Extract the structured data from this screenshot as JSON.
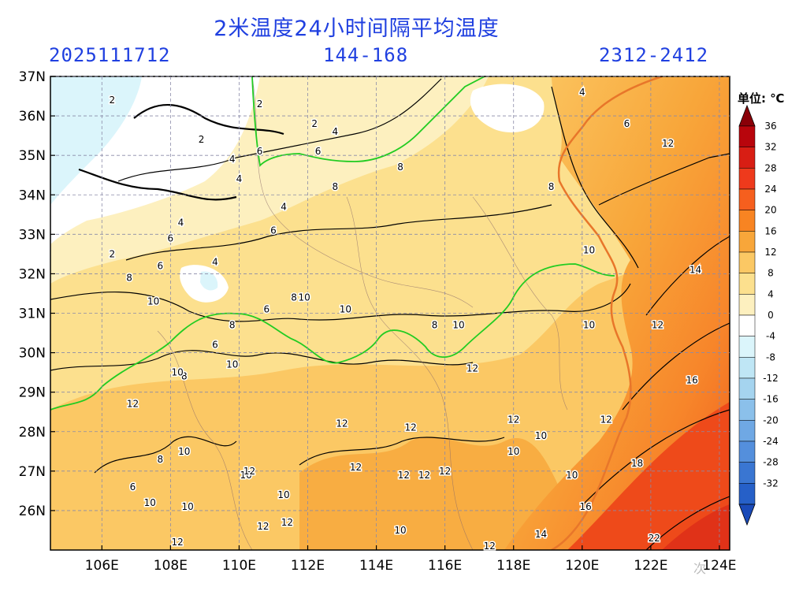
{
  "header": {
    "title": "2米温度24小时间隔平均温度",
    "init_time": "2025111712",
    "forecast_hours": "144-168",
    "valid_period": "2312-2412"
  },
  "map": {
    "lat_labels": [
      "37N",
      "36N",
      "35N",
      "34N",
      "33N",
      "32N",
      "31N",
      "30N",
      "29N",
      "28N",
      "27N",
      "26N"
    ],
    "lon_labels": [
      "106E",
      "108E",
      "110E",
      "112E",
      "114E",
      "116E",
      "118E",
      "120E",
      "122E",
      "124E"
    ],
    "contour_labels": [
      {
        "text": "2",
        "lon": 106.3,
        "lat": 36.4
      },
      {
        "text": "2",
        "lon": 108.9,
        "lat": 35.4
      },
      {
        "text": "2",
        "lon": 110.6,
        "lat": 36.3
      },
      {
        "text": "2",
        "lon": 112.2,
        "lat": 35.8
      },
      {
        "text": "2",
        "lon": 106.3,
        "lat": 32.5
      },
      {
        "text": "4",
        "lon": 109.8,
        "lat": 34.9
      },
      {
        "text": "4",
        "lon": 112.8,
        "lat": 35.6
      },
      {
        "text": "4",
        "lon": 110.0,
        "lat": 34.4
      },
      {
        "text": "4",
        "lon": 111.3,
        "lat": 33.7
      },
      {
        "text": "4",
        "lon": 109.3,
        "lat": 32.3
      },
      {
        "text": "4",
        "lon": 108.3,
        "lat": 33.3
      },
      {
        "text": "4",
        "lon": 120.0,
        "lat": 36.6
      },
      {
        "text": "6",
        "lon": 110.6,
        "lat": 35.1
      },
      {
        "text": "6",
        "lon": 112.3,
        "lat": 35.1
      },
      {
        "text": "6",
        "lon": 108.0,
        "lat": 32.9
      },
      {
        "text": "6",
        "lon": 107.7,
        "lat": 32.2
      },
      {
        "text": "6",
        "lon": 111.0,
        "lat": 33.1
      },
      {
        "text": "6",
        "lon": 110.8,
        "lat": 31.1
      },
      {
        "text": "6",
        "lon": 109.3,
        "lat": 30.2
      },
      {
        "text": "6",
        "lon": 121.3,
        "lat": 35.8
      },
      {
        "text": "6",
        "lon": 106.9,
        "lat": 26.6
      },
      {
        "text": "8",
        "lon": 106.8,
        "lat": 31.9
      },
      {
        "text": "8",
        "lon": 112.8,
        "lat": 34.2
      },
      {
        "text": "8",
        "lon": 114.7,
        "lat": 34.7
      },
      {
        "text": "8",
        "lon": 119.1,
        "lat": 34.2
      },
      {
        "text": "8",
        "lon": 111.6,
        "lat": 31.4
      },
      {
        "text": "8",
        "lon": 109.8,
        "lat": 30.7
      },
      {
        "text": "8",
        "lon": 115.7,
        "lat": 30.7
      },
      {
        "text": "8",
        "lon": 108.4,
        "lat": 29.4
      },
      {
        "text": "8",
        "lon": 107.7,
        "lat": 27.3
      },
      {
        "text": "10",
        "lon": 107.5,
        "lat": 31.3
      },
      {
        "text": "10",
        "lon": 111.9,
        "lat": 31.4
      },
      {
        "text": "10",
        "lon": 113.1,
        "lat": 31.1
      },
      {
        "text": "10",
        "lon": 116.4,
        "lat": 30.7
      },
      {
        "text": "10",
        "lon": 120.2,
        "lat": 32.6
      },
      {
        "text": "10",
        "lon": 120.2,
        "lat": 30.7
      },
      {
        "text": "10",
        "lon": 109.8,
        "lat": 29.7
      },
      {
        "text": "10",
        "lon": 108.2,
        "lat": 29.5
      },
      {
        "text": "10",
        "lon": 108.4,
        "lat": 27.5
      },
      {
        "text": "10",
        "lon": 110.2,
        "lat": 26.9
      },
      {
        "text": "10",
        "lon": 108.5,
        "lat": 26.1
      },
      {
        "text": "10",
        "lon": 107.4,
        "lat": 26.2
      },
      {
        "text": "10",
        "lon": 111.3,
        "lat": 26.4
      },
      {
        "text": "10",
        "lon": 118.0,
        "lat": 27.5
      },
      {
        "text": "10",
        "lon": 118.8,
        "lat": 27.9
      },
      {
        "text": "10",
        "lon": 119.7,
        "lat": 26.9
      },
      {
        "text": "10",
        "lon": 114.7,
        "lat": 25.5
      },
      {
        "text": "12",
        "lon": 106.9,
        "lat": 28.7
      },
      {
        "text": "12",
        "lon": 113.0,
        "lat": 28.2
      },
      {
        "text": "12",
        "lon": 115.0,
        "lat": 28.1
      },
      {
        "text": "12",
        "lon": 116.8,
        "lat": 29.6
      },
      {
        "text": "12",
        "lon": 118.0,
        "lat": 28.3
      },
      {
        "text": "12",
        "lon": 120.7,
        "lat": 28.3
      },
      {
        "text": "12",
        "lon": 122.5,
        "lat": 35.3
      },
      {
        "text": "12",
        "lon": 122.2,
        "lat": 30.7
      },
      {
        "text": "12",
        "lon": 110.3,
        "lat": 27.0
      },
      {
        "text": "12",
        "lon": 113.4,
        "lat": 27.1
      },
      {
        "text": "12",
        "lon": 114.8,
        "lat": 26.9
      },
      {
        "text": "12",
        "lon": 115.4,
        "lat": 26.9
      },
      {
        "text": "12",
        "lon": 116.0,
        "lat": 27.0
      },
      {
        "text": "12",
        "lon": 110.7,
        "lat": 25.6
      },
      {
        "text": "12",
        "lon": 111.4,
        "lat": 25.7
      },
      {
        "text": "12",
        "lon": 108.2,
        "lat": 25.2
      },
      {
        "text": "12",
        "lon": 117.3,
        "lat": 25.1
      },
      {
        "text": "14",
        "lon": 123.3,
        "lat": 32.1
      },
      {
        "text": "14",
        "lon": 118.8,
        "lat": 25.4
      },
      {
        "text": "16",
        "lon": 123.2,
        "lat": 29.3
      },
      {
        "text": "16",
        "lon": 120.1,
        "lat": 26.1
      },
      {
        "text": "18",
        "lon": 121.6,
        "lat": 27.2
      },
      {
        "text": "22",
        "lon": 122.1,
        "lat": 25.3
      }
    ]
  },
  "colorbar": {
    "unit_label": "单位: ℃",
    "levels": [
      "36",
      "32",
      "28",
      "24",
      "20",
      "16",
      "12",
      "8",
      "4",
      "0",
      "-4",
      "-8",
      "-12",
      "-16",
      "-20",
      "-24",
      "-28",
      "-32"
    ],
    "colors": [
      "#b8050c",
      "#d81e14",
      "#ee3a1c",
      "#f65f1e",
      "#f88422",
      "#f8a63a",
      "#fbc864",
      "#fce08e",
      "#fdf0bf",
      "#ffffff",
      "#dbf5fb",
      "#bfe6f5",
      "#a5d4ef",
      "#8bc0ea",
      "#6fa8e4",
      "#548fdc",
      "#3a76d2",
      "#2660c8"
    ],
    "top_color": "#8a0008",
    "bottom_color": "#1a4ab8"
  },
  "watermark": "次"
}
